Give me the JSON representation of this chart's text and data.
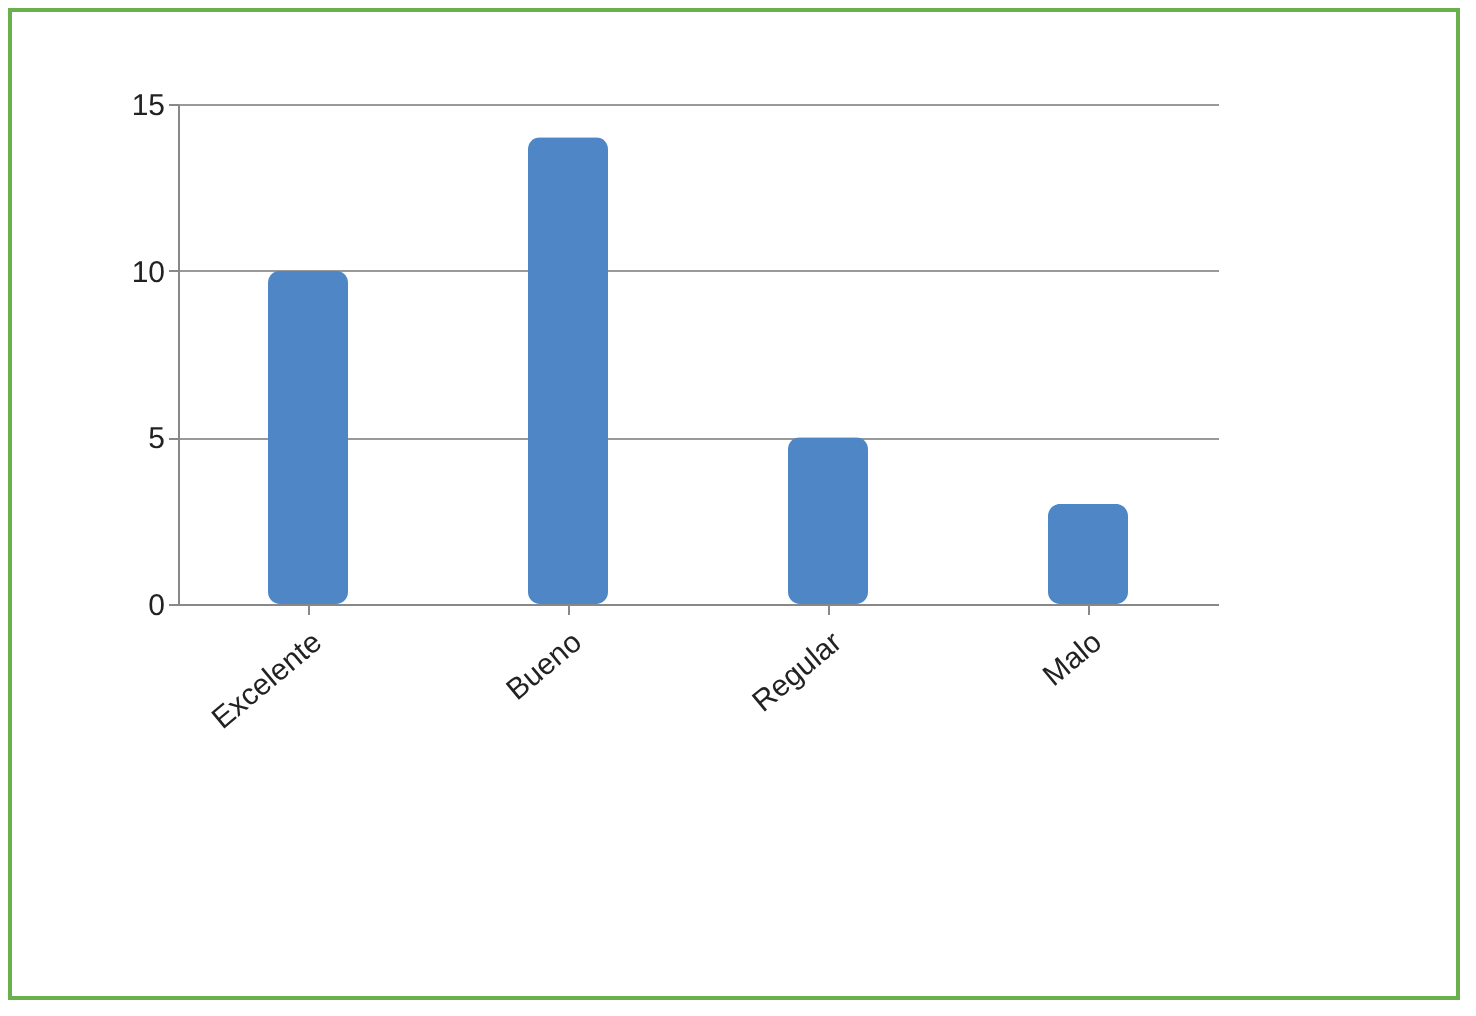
{
  "chart_data": {
    "type": "bar",
    "categories": [
      "Excelente",
      "Bueno",
      "Regular",
      "Malo"
    ],
    "values": [
      10,
      14,
      5,
      3
    ],
    "color": "#4f86c6",
    "ylim": [
      0,
      15
    ],
    "yticks": [
      0,
      5,
      10,
      15
    ],
    "grid": "y"
  }
}
